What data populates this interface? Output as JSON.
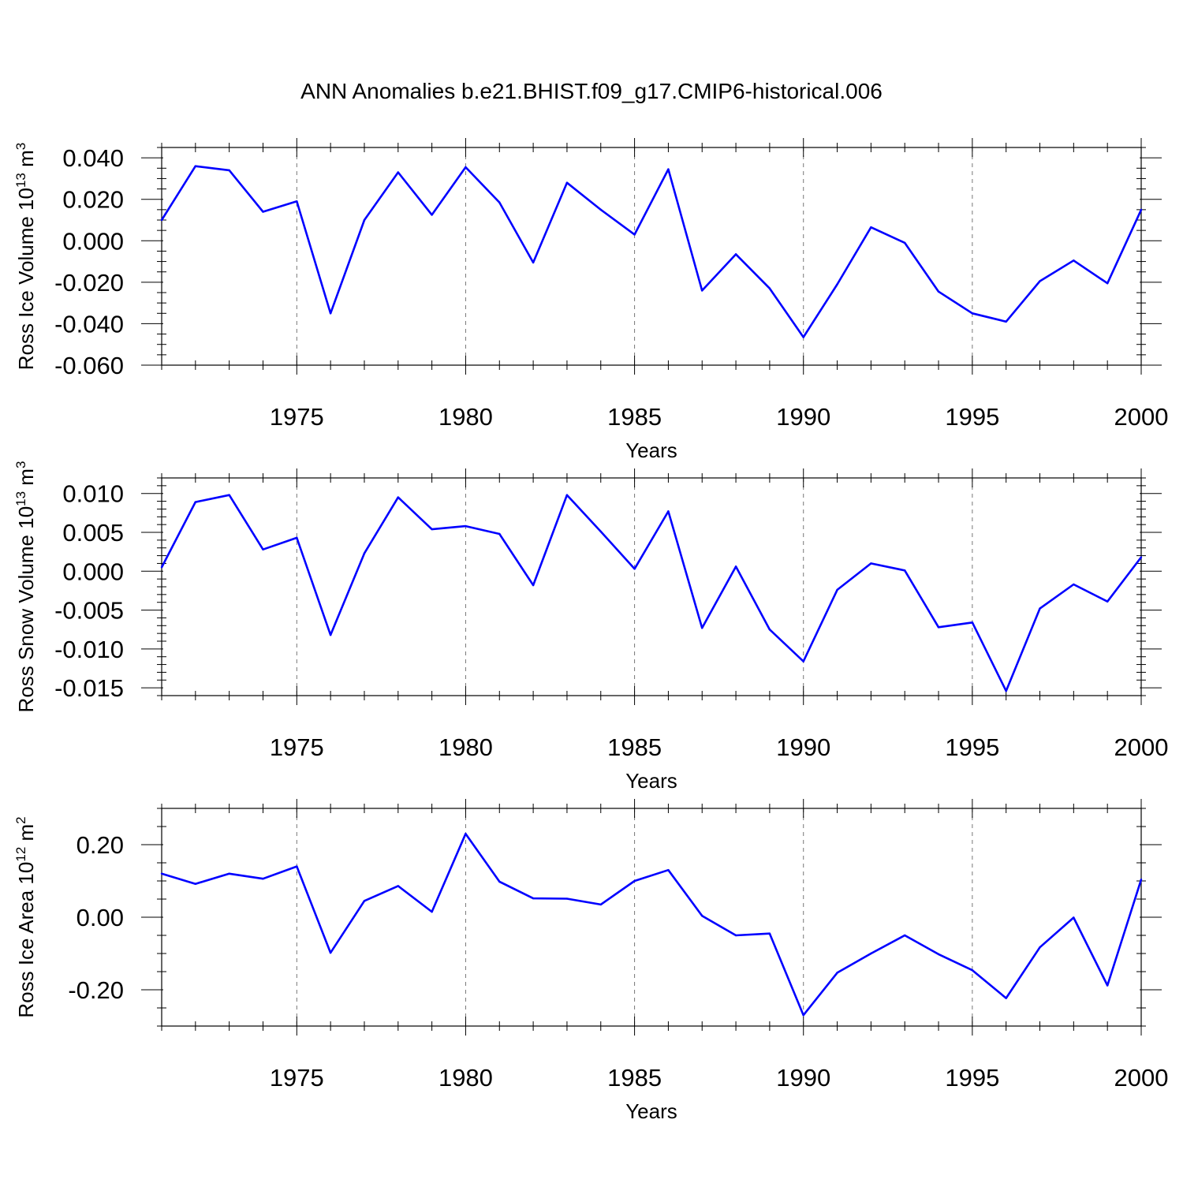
{
  "title": "ANN Anomalies b.e21.BHIST.f09_g17.CMIP6-historical.006",
  "line_color": "#0000ff",
  "chart_data": [
    {
      "type": "line",
      "ylabel_text": "Ross Ice Volume 10",
      "ylabel_exp": "13",
      "ylabel_unit": " m",
      "ylabel_unit_exp": "3",
      "xlabel": "Years",
      "xlim": [
        1971,
        2000
      ],
      "ylim": [
        -0.06,
        0.045
      ],
      "yticks": [
        0.04,
        0.02,
        0.0,
        -0.02,
        -0.04,
        -0.06
      ],
      "ytick_labels": [
        "0.040",
        "0.020",
        "0.000",
        "-0.020",
        "-0.040",
        "-0.060"
      ],
      "yminor_step": 0.005,
      "xticks": [
        1975,
        1980,
        1985,
        1990,
        1995,
        2000
      ],
      "xtick_labels": [
        "1975",
        "1980",
        "1985",
        "1990",
        "1995",
        "2000"
      ],
      "x": [
        1971,
        1972,
        1973,
        1974,
        1975,
        1976,
        1977,
        1978,
        1979,
        1980,
        1981,
        1982,
        1983,
        1984,
        1985,
        1986,
        1987,
        1988,
        1989,
        1990,
        1991,
        1992,
        1993,
        1994,
        1995,
        1996,
        1997,
        1998,
        1999,
        2000
      ],
      "values": [
        0.01,
        0.036,
        0.034,
        0.014,
        0.019,
        -0.035,
        0.01,
        0.033,
        0.0125,
        0.0355,
        0.0185,
        -0.0105,
        0.028,
        0.015,
        0.003,
        0.0345,
        -0.024,
        -0.0065,
        -0.023,
        -0.0465,
        -0.021,
        0.0065,
        -0.001,
        -0.0245,
        -0.035,
        -0.039,
        -0.0195,
        -0.0095,
        -0.0205,
        0.015
      ]
    },
    {
      "type": "line",
      "ylabel_text": "Ross Snow Volume 10",
      "ylabel_exp": "13",
      "ylabel_unit": " m",
      "ylabel_unit_exp": "3",
      "xlabel": "Years",
      "xlim": [
        1971,
        2000
      ],
      "ylim": [
        -0.016,
        0.012
      ],
      "yticks": [
        0.01,
        0.005,
        0.0,
        -0.005,
        -0.01,
        -0.015
      ],
      "ytick_labels": [
        "0.010",
        "0.005",
        "0.000",
        "-0.005",
        "-0.010",
        "-0.015"
      ],
      "yminor_step": 0.001,
      "xticks": [
        1975,
        1980,
        1985,
        1990,
        1995,
        2000
      ],
      "xtick_labels": [
        "1975",
        "1980",
        "1985",
        "1990",
        "1995",
        "2000"
      ],
      "x": [
        1971,
        1972,
        1973,
        1974,
        1975,
        1976,
        1977,
        1978,
        1979,
        1980,
        1981,
        1982,
        1983,
        1984,
        1985,
        1986,
        1987,
        1988,
        1989,
        1990,
        1991,
        1992,
        1993,
        1994,
        1995,
        1996,
        1997,
        1998,
        1999,
        2000
      ],
      "values": [
        0.0005,
        0.0089,
        0.0098,
        0.0028,
        0.0043,
        -0.0082,
        0.0023,
        0.0095,
        0.0054,
        0.0058,
        0.0048,
        -0.0018,
        0.0098,
        0.0051,
        0.0003,
        0.0077,
        -0.0073,
        0.0006,
        -0.0075,
        -0.0116,
        -0.0024,
        0.001,
        0.0001,
        -0.0072,
        -0.0066,
        -0.0154,
        -0.0048,
        -0.0017,
        -0.0039,
        0.0018
      ]
    },
    {
      "type": "line",
      "ylabel_text": "Ross Ice Area 10",
      "ylabel_exp": "12",
      "ylabel_unit": " m",
      "ylabel_unit_exp": "2",
      "xlabel": "Years",
      "xlim": [
        1971,
        2000
      ],
      "ylim": [
        -0.3,
        0.3
      ],
      "yticks": [
        0.2,
        0.0,
        -0.2
      ],
      "ytick_labels": [
        "0.20",
        "0.00",
        "-0.20"
      ],
      "yminor_step": 0.05,
      "xticks": [
        1975,
        1980,
        1985,
        1990,
        1995,
        2000
      ],
      "xtick_labels": [
        "1975",
        "1980",
        "1985",
        "1990",
        "1995",
        "2000"
      ],
      "x": [
        1971,
        1972,
        1973,
        1974,
        1975,
        1976,
        1977,
        1978,
        1979,
        1980,
        1981,
        1982,
        1983,
        1984,
        1985,
        1986,
        1987,
        1988,
        1989,
        1990,
        1991,
        1992,
        1993,
        1994,
        1995,
        1996,
        1997,
        1998,
        1999,
        2000
      ],
      "values": [
        0.12,
        0.092,
        0.12,
        0.106,
        0.14,
        -0.098,
        0.045,
        0.086,
        0.015,
        0.23,
        0.098,
        0.052,
        0.051,
        0.035,
        0.1,
        0.13,
        0.004,
        -0.05,
        -0.045,
        -0.27,
        -0.153,
        -0.1,
        -0.05,
        -0.102,
        -0.146,
        -0.223,
        -0.083,
        -0.001,
        -0.188,
        0.104
      ]
    }
  ]
}
